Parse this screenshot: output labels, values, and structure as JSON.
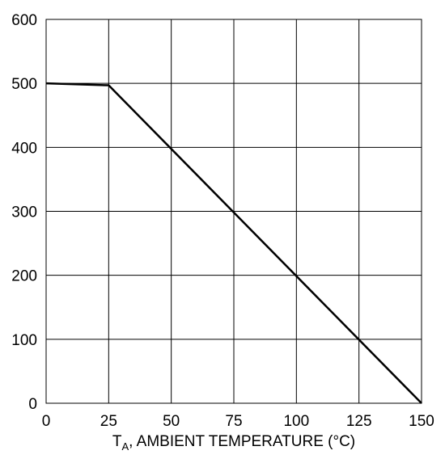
{
  "chart_data": {
    "type": "line",
    "title": "",
    "xlabel": "T",
    "xlabel_sub": "A",
    "xlabel_rest": ", AMBIENT TEMPERATURE (°C)",
    "ylabel": "",
    "xlim": [
      0,
      150
    ],
    "ylim": [
      0,
      600
    ],
    "xticks": [
      0,
      25,
      50,
      75,
      100,
      125,
      150
    ],
    "yticks": [
      0,
      100,
      200,
      300,
      400,
      500,
      600
    ],
    "grid": true,
    "legend": "none",
    "series": [
      {
        "x": [
          0,
          25,
          150
        ],
        "y": [
          500,
          497,
          0
        ]
      }
    ]
  },
  "colors": {
    "line": "#000000",
    "grid": "#000000",
    "background": "#ffffff"
  }
}
